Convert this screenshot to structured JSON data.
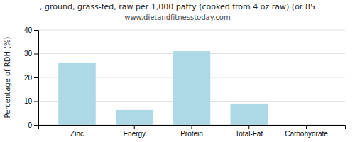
{
  "chart_data": {
    "type": "bar",
    "title": ", ground, grass-fed, raw per 1,000 patty (cooked from 4 oz raw) (or 85",
    "subtitle": "www.dietandfitnesstoday.com",
    "categories": [
      "Zinc",
      "Energy",
      "Protein",
      "Total-Fat",
      "Carbohydrate"
    ],
    "values": [
      26.0,
      6.3,
      31.0,
      9.0,
      0.0
    ],
    "color": "#add8e6",
    "ylabel": "Percentage of RDH (%)",
    "ylim": [
      0,
      40
    ],
    "yticks": [
      0,
      10,
      20,
      30,
      40
    ],
    "grid": true
  }
}
